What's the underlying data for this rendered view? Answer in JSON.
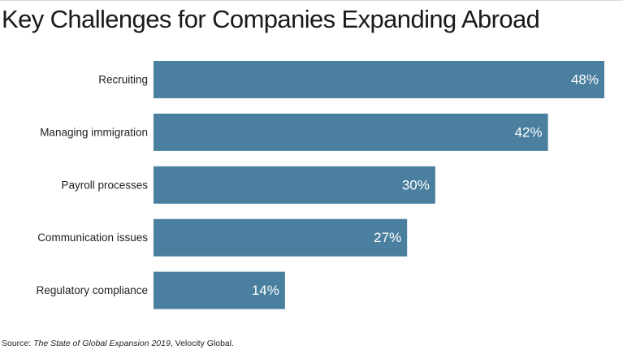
{
  "chart_data": {
    "type": "bar",
    "orientation": "horizontal",
    "title": "Key Challenges for Companies Expanding Abroad",
    "categories": [
      "Recruiting",
      "Managing immigration",
      "Payroll processes",
      "Communication issues",
      "Regulatory compliance"
    ],
    "values": [
      48,
      42,
      30,
      27,
      14
    ],
    "value_labels": [
      "48%",
      "42%",
      "30%",
      "27%",
      "14%"
    ],
    "unit": "%",
    "xlim": [
      0,
      48
    ],
    "grid": false,
    "legend": "none",
    "bar_color": "#4a7f9f"
  },
  "source": {
    "prefix": "Source: ",
    "publication": "The State of Global Expansion 2019",
    "suffix": ", Velocity Global."
  }
}
